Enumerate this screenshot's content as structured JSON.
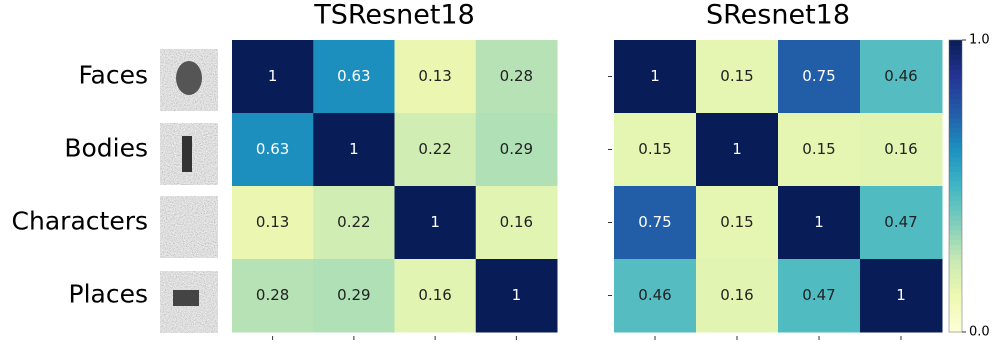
{
  "chart_data": [
    {
      "type": "heatmap",
      "title": "TSResnet18",
      "x_categories": [
        null,
        null,
        null,
        null
      ],
      "y_categories": [
        "Faces",
        "Bodies",
        "Characters",
        "Places"
      ],
      "values": [
        [
          1,
          0.63,
          0.13,
          0.28
        ],
        [
          0.63,
          1,
          0.22,
          0.29
        ],
        [
          0.13,
          0.22,
          1,
          0.16
        ],
        [
          0.28,
          0.29,
          0.16,
          1
        ]
      ],
      "colormap": "YlGnBu",
      "zlim": [
        0,
        1
      ]
    },
    {
      "type": "heatmap",
      "title": "SResnet18",
      "x_categories": [
        null,
        null,
        null,
        null
      ],
      "y_categories": [
        null,
        null,
        null,
        null
      ],
      "values": [
        [
          1,
          0.15,
          0.75,
          0.46
        ],
        [
          0.15,
          1,
          0.15,
          0.16
        ],
        [
          0.75,
          0.15,
          1,
          0.47
        ],
        [
          0.46,
          0.16,
          0.47,
          1
        ]
      ],
      "colormap": "YlGnBu",
      "zlim": [
        0,
        1
      ],
      "colorbar": true,
      "zticks": [
        {
          "value": 0,
          "label": "0.0"
        },
        {
          "value": 1,
          "label": "1.0"
        }
      ]
    }
  ]
}
